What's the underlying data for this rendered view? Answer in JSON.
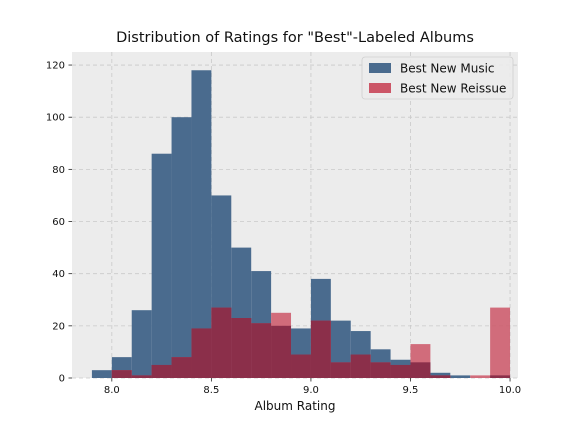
{
  "chart_data": {
    "type": "bar",
    "title": "Distribution of Ratings for \"Best\"-Labeled Albums",
    "xlabel": "Album Rating",
    "ylabel": "",
    "xlim": [
      7.8,
      10.04
    ],
    "ylim": [
      0,
      125
    ],
    "xticks": [
      8.0,
      8.5,
      9.0,
      9.5,
      10.0
    ],
    "xtick_labels": [
      "8.0",
      "8.5",
      "9.0",
      "9.5",
      "10.0"
    ],
    "yticks": [
      0,
      20,
      40,
      60,
      80,
      100,
      120
    ],
    "ytick_labels": [
      "0",
      "20",
      "40",
      "60",
      "80",
      "100",
      "120"
    ],
    "grid": true,
    "legend_position": "top-right",
    "colors": {
      "best_new_music": "#4a6b8e",
      "best_new_reissue": "#cc5667",
      "overlap": "#8b2f4a",
      "plot_background": "#ececec",
      "grid": "#c9c9c9"
    },
    "series": [
      {
        "name": "Best New Music",
        "color": "#4a6b8e",
        "bins": [
          {
            "x0": 7.9,
            "x1": 8.0,
            "value": 3
          },
          {
            "x0": 8.0,
            "x1": 8.1,
            "value": 8
          },
          {
            "x0": 8.1,
            "x1": 8.2,
            "value": 26
          },
          {
            "x0": 8.2,
            "x1": 8.3,
            "value": 86
          },
          {
            "x0": 8.3,
            "x1": 8.4,
            "value": 100
          },
          {
            "x0": 8.4,
            "x1": 8.5,
            "value": 118
          },
          {
            "x0": 8.5,
            "x1": 8.6,
            "value": 70
          },
          {
            "x0": 8.6,
            "x1": 8.7,
            "value": 50
          },
          {
            "x0": 8.7,
            "x1": 8.8,
            "value": 41
          },
          {
            "x0": 8.8,
            "x1": 8.9,
            "value": 20
          },
          {
            "x0": 8.9,
            "x1": 9.0,
            "value": 19
          },
          {
            "x0": 9.0,
            "x1": 9.1,
            "value": 38
          },
          {
            "x0": 9.1,
            "x1": 9.2,
            "value": 22
          },
          {
            "x0": 9.2,
            "x1": 9.3,
            "value": 18
          },
          {
            "x0": 9.3,
            "x1": 9.4,
            "value": 11
          },
          {
            "x0": 9.4,
            "x1": 9.5,
            "value": 7
          },
          {
            "x0": 9.5,
            "x1": 9.6,
            "value": 6
          },
          {
            "x0": 9.6,
            "x1": 9.7,
            "value": 2
          },
          {
            "x0": 9.7,
            "x1": 9.8,
            "value": 1
          },
          {
            "x0": 9.8,
            "x1": 9.9,
            "value": 0
          },
          {
            "x0": 9.9,
            "x1": 10.0,
            "value": 1
          }
        ]
      },
      {
        "name": "Best New Reissue",
        "color": "#cc5667",
        "bins": [
          {
            "x0": 8.0,
            "x1": 8.1,
            "value": 3
          },
          {
            "x0": 8.1,
            "x1": 8.2,
            "value": 1
          },
          {
            "x0": 8.2,
            "x1": 8.3,
            "value": 5
          },
          {
            "x0": 8.3,
            "x1": 8.4,
            "value": 8
          },
          {
            "x0": 8.4,
            "x1": 8.5,
            "value": 19
          },
          {
            "x0": 8.5,
            "x1": 8.6,
            "value": 27
          },
          {
            "x0": 8.6,
            "x1": 8.7,
            "value": 23
          },
          {
            "x0": 8.7,
            "x1": 8.8,
            "value": 21
          },
          {
            "x0": 8.8,
            "x1": 8.9,
            "value": 25
          },
          {
            "x0": 8.9,
            "x1": 9.0,
            "value": 9
          },
          {
            "x0": 9.0,
            "x1": 9.1,
            "value": 22
          },
          {
            "x0": 9.1,
            "x1": 9.2,
            "value": 6
          },
          {
            "x0": 9.2,
            "x1": 9.3,
            "value": 9
          },
          {
            "x0": 9.3,
            "x1": 9.4,
            "value": 6
          },
          {
            "x0": 9.4,
            "x1": 9.5,
            "value": 5
          },
          {
            "x0": 9.5,
            "x1": 9.6,
            "value": 13
          },
          {
            "x0": 9.6,
            "x1": 9.7,
            "value": 1
          },
          {
            "x0": 9.7,
            "x1": 9.8,
            "value": 0
          },
          {
            "x0": 9.8,
            "x1": 9.9,
            "value": 1
          },
          {
            "x0": 9.9,
            "x1": 10.0,
            "value": 27
          }
        ]
      }
    ]
  }
}
